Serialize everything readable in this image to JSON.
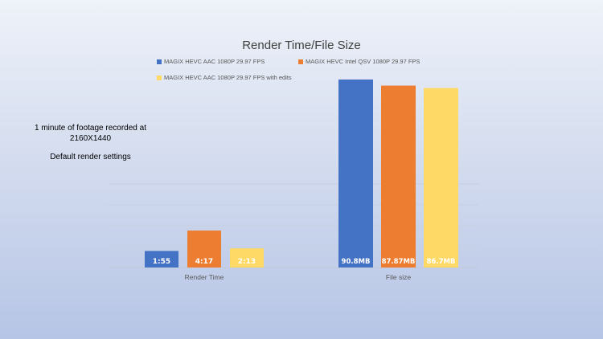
{
  "chart_data": {
    "type": "bar",
    "title": "Render Time/File Size",
    "categories": [
      "Render Time",
      "File size"
    ],
    "series": [
      {
        "name": "MAGIX HEVC AAC 1080P 29.97 FPS",
        "color": "#4472C4",
        "values": [
          115,
          90.8
        ],
        "labels": [
          "1:55",
          "90.8MB"
        ]
      },
      {
        "name": "MAGIX HEVC Intel QSV 1080P 29.97 FPS",
        "color": "#ED7D31",
        "values": [
          257,
          87.87
        ],
        "labels": [
          "4:17",
          "87.87MB"
        ]
      },
      {
        "name": "MAGIX HEVC AAC 1080P 29.97 FPS with edits",
        "color": "#FFD966",
        "values": [
          133,
          86.7
        ],
        "labels": [
          "2:13",
          "86.7MB"
        ]
      }
    ],
    "legend_position": "top",
    "grid": true
  },
  "annotation": {
    "line1": "1 minute of footage recorded at",
    "line2": "2160X1440",
    "line3": "Default render settings"
  }
}
